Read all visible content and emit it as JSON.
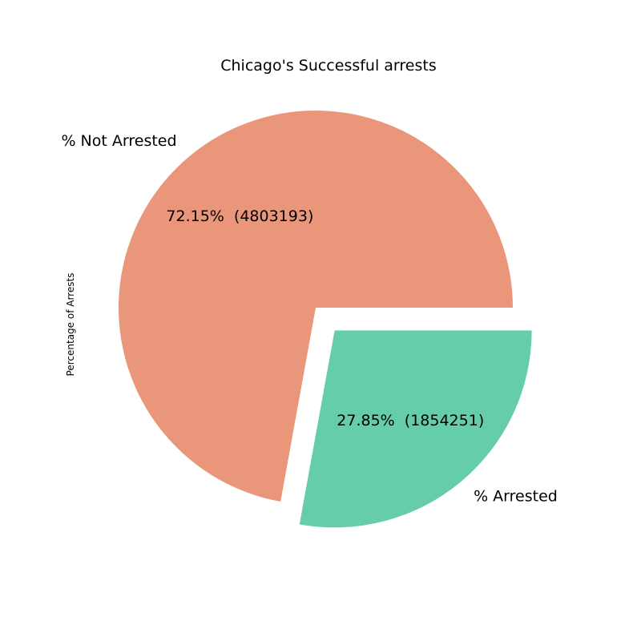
{
  "chart_data": {
    "type": "pie",
    "title": "Chicago's Successful arrests",
    "ylabel": "Percentage of Arrests",
    "slices": [
      {
        "label": "% Not Arrested",
        "value": 4803193,
        "percent_text": "72.15%  (4803193)",
        "color": "#e9967a",
        "exploded": false
      },
      {
        "label": "% Arrested",
        "value": 1854251,
        "percent_text": "27.85%  (1854251)",
        "color": "#66cdaa",
        "exploded": true
      }
    ]
  }
}
